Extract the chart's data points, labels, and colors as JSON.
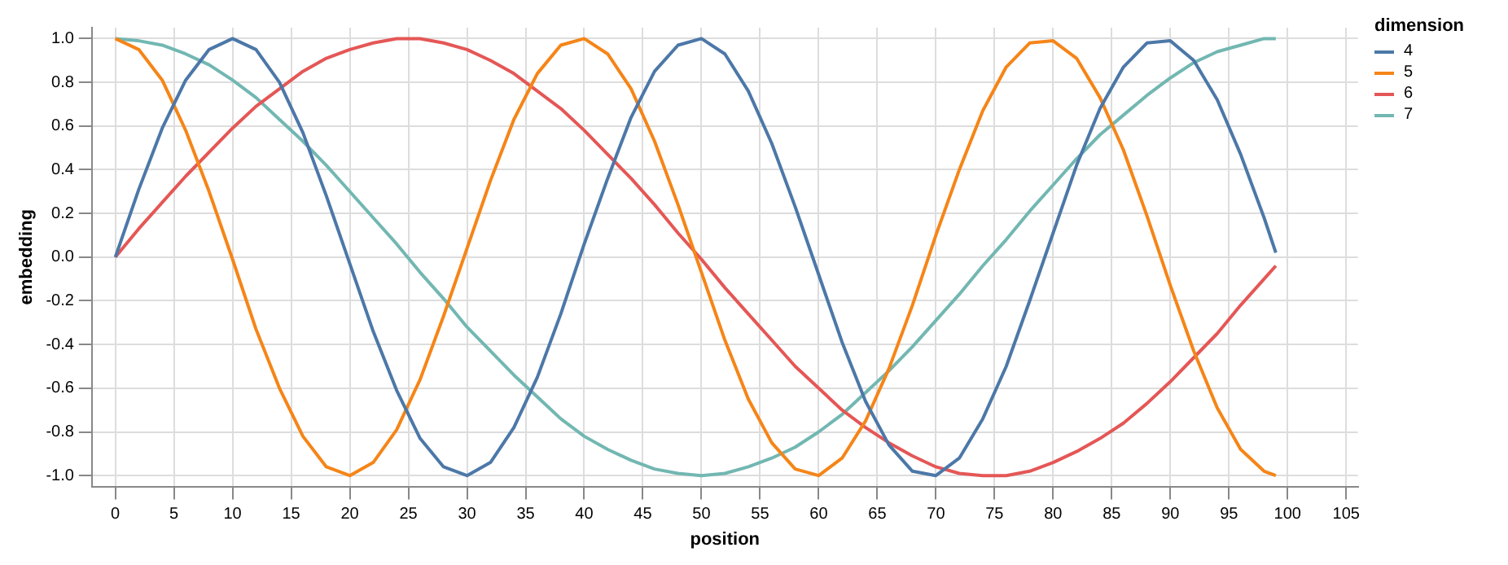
{
  "chart_data": {
    "type": "line",
    "xlabel": "position",
    "ylabel": "embedding",
    "legend_title": "dimension",
    "legend": "top right",
    "grid": true,
    "marker": "none",
    "line_style": "solid",
    "x": [
      0,
      2,
      4,
      6,
      8,
      10,
      12,
      14,
      16,
      18,
      20,
      22,
      24,
      26,
      28,
      30,
      32,
      34,
      36,
      38,
      40,
      42,
      44,
      46,
      48,
      50,
      52,
      54,
      56,
      58,
      60,
      62,
      64,
      66,
      68,
      70,
      72,
      74,
      76,
      78,
      80,
      82,
      84,
      86,
      88,
      90,
      92,
      94,
      96,
      98,
      99
    ],
    "xlim": [
      -2,
      106
    ],
    "xticks": [
      0,
      5,
      10,
      15,
      20,
      25,
      30,
      35,
      40,
      45,
      50,
      55,
      60,
      65,
      70,
      75,
      80,
      85,
      90,
      95,
      100,
      105
    ],
    "ylim": [
      -1.05,
      1.05
    ],
    "yticks": [
      {
        "value": -1,
        "label": "-1.0"
      },
      {
        "value": -0.8,
        "label": "-0.8"
      },
      {
        "value": -0.6,
        "label": "-0.6"
      },
      {
        "value": -0.4,
        "label": "-0.4"
      },
      {
        "value": -0.2,
        "label": "-0.2"
      },
      {
        "value": 0,
        "label": "0.0"
      },
      {
        "value": 0.2,
        "label": "0.2"
      },
      {
        "value": 0.4,
        "label": "0.4"
      },
      {
        "value": 0.6,
        "label": "0.6"
      },
      {
        "value": 0.8,
        "label": "0.8"
      },
      {
        "value": 1,
        "label": "1.0"
      }
    ],
    "series": [
      {
        "name": "4",
        "color": "#4c78a8",
        "values": [
          0,
          0.31,
          0.59,
          0.81,
          0.95,
          1,
          0.95,
          0.8,
          0.57,
          0.28,
          -0.03,
          -0.34,
          -0.61,
          -0.83,
          -0.96,
          -1,
          -0.94,
          -0.78,
          -0.55,
          -0.26,
          0.06,
          0.36,
          0.64,
          0.85,
          0.97,
          1,
          0.93,
          0.76,
          0.52,
          0.23,
          -0.08,
          -0.39,
          -0.66,
          -0.86,
          -0.98,
          -1,
          -0.92,
          -0.74,
          -0.5,
          -0.2,
          0.11,
          0.42,
          0.68,
          0.87,
          0.98,
          0.99,
          0.9,
          0.72,
          0.47,
          0.18,
          0.02
        ]
      },
      {
        "name": "5",
        "color": "#f58518",
        "values": [
          1,
          0.95,
          0.81,
          0.58,
          0.3,
          -0.01,
          -0.33,
          -0.6,
          -0.82,
          -0.96,
          -1,
          -0.94,
          -0.79,
          -0.56,
          -0.27,
          0.04,
          0.35,
          0.63,
          0.84,
          0.97,
          1,
          0.93,
          0.77,
          0.53,
          0.24,
          -0.07,
          -0.38,
          -0.65,
          -0.85,
          -0.97,
          -1,
          -0.92,
          -0.75,
          -0.51,
          -0.22,
          0.1,
          0.4,
          0.67,
          0.87,
          0.98,
          0.99,
          0.91,
          0.73,
          0.49,
          0.19,
          -0.13,
          -0.43,
          -0.69,
          -0.88,
          -0.98,
          -1
        ]
      },
      {
        "name": "6",
        "color": "#e45756",
        "values": [
          0,
          0.13,
          0.25,
          0.37,
          0.48,
          0.59,
          0.69,
          0.77,
          0.85,
          0.91,
          0.95,
          0.98,
          1,
          1,
          0.98,
          0.95,
          0.9,
          0.84,
          0.76,
          0.68,
          0.58,
          0.47,
          0.36,
          0.24,
          0.11,
          -0.01,
          -0.14,
          -0.26,
          -0.38,
          -0.5,
          -0.6,
          -0.7,
          -0.78,
          -0.85,
          -0.91,
          -0.96,
          -0.99,
          -1,
          -1,
          -0.98,
          -0.94,
          -0.89,
          -0.83,
          -0.76,
          -0.67,
          -0.57,
          -0.46,
          -0.35,
          -0.22,
          -0.1,
          -0.04
        ]
      },
      {
        "name": "7",
        "color": "#72b7b2",
        "values": [
          1,
          0.99,
          0.97,
          0.93,
          0.88,
          0.81,
          0.73,
          0.63,
          0.53,
          0.42,
          0.3,
          0.18,
          0.06,
          -0.07,
          -0.19,
          -0.32,
          -0.43,
          -0.54,
          -0.64,
          -0.74,
          -0.82,
          -0.88,
          -0.93,
          -0.97,
          -0.99,
          -1,
          -0.99,
          -0.96,
          -0.92,
          -0.87,
          -0.8,
          -0.72,
          -0.62,
          -0.52,
          -0.41,
          -0.29,
          -0.17,
          -0.04,
          0.08,
          0.21,
          0.33,
          0.45,
          0.56,
          0.65,
          0.74,
          0.82,
          0.89,
          0.94,
          0.97,
          1,
          1
        ]
      }
    ]
  }
}
